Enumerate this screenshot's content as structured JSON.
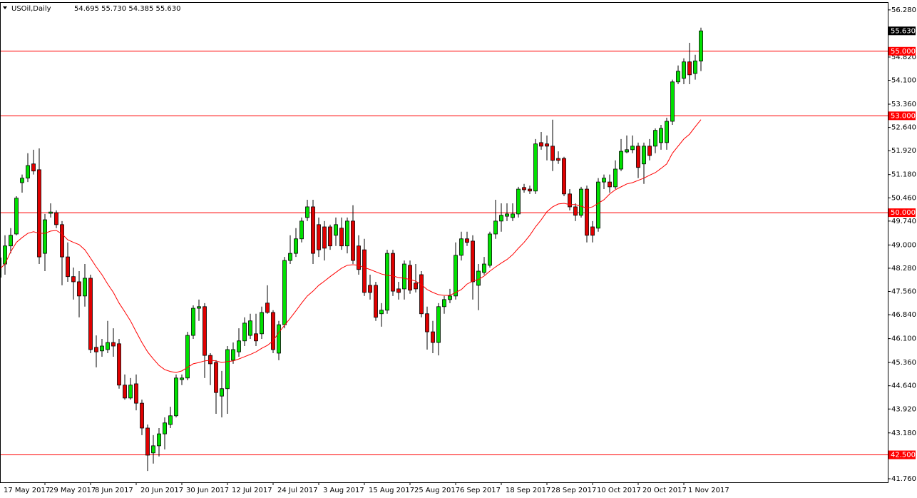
{
  "chart_data": {
    "type": "candlestick",
    "title": "USOil,Daily",
    "info": "54.695 55.730 54.385 55.630",
    "up_color": "#00e000",
    "down_color": "#e00000",
    "categories": [
      "17 May 2017",
      null,
      null,
      null,
      null,
      null,
      null,
      null,
      "29 May 2017",
      null,
      null,
      null,
      null,
      null,
      null,
      null,
      "8 Jun 2017",
      null,
      null,
      null,
      null,
      null,
      null,
      null,
      "20 Jun 2017",
      null,
      null,
      null,
      null,
      null,
      null,
      null,
      "30 Jun 2017",
      null,
      null,
      null,
      null,
      null,
      null,
      null,
      "12 Jul 2017",
      null,
      null,
      null,
      null,
      null,
      null,
      null,
      "24 Jul 2017",
      null,
      null,
      null,
      null,
      null,
      null,
      null,
      "3 Aug 2017",
      null,
      null,
      null,
      null,
      null,
      null,
      null,
      "15 Aug 2017",
      null,
      null,
      null,
      null,
      null,
      null,
      null,
      "25 Aug 2017",
      null,
      null,
      null,
      null,
      null,
      null,
      null,
      "6 Sep 2017",
      null,
      null,
      null,
      null,
      null,
      null,
      null,
      "18 Sep 2017",
      null,
      null,
      null,
      null,
      null,
      null,
      null,
      "28 Sep 2017",
      null,
      null,
      null,
      null,
      null,
      null,
      null,
      "10 Oct 2017",
      null,
      null,
      null,
      null,
      null,
      null,
      null,
      "20 Oct 2017",
      null,
      null,
      null,
      null,
      null,
      null,
      null,
      "1 Nov 2017",
      null,
      null,
      null
    ],
    "open": [
      48.0,
      48.41,
      48.97,
      49.34,
      50.93,
      51.07,
      51.51,
      51.33,
      48.74,
      49.98,
      50.0,
      49.63,
      48.63,
      48.02,
      47.86,
      47.42,
      47.97,
      45.83,
      45.72,
      45.76,
      45.98,
      45.94,
      44.66,
      44.26,
      44.7,
      44.1,
      43.33,
      42.56,
      42.78,
      43.15,
      43.44,
      43.71,
      44.83,
      44.88,
      46.2,
      47.04,
      47.09,
      45.58,
      45.36,
      44.32,
      44.55,
      45.43,
      45.69,
      46.03,
      46.2,
      46.25,
      46.25,
      47.2,
      46.91,
      45.65,
      46.53,
      48.52,
      48.74,
      49.19,
      49.85,
      50.18,
      49.63,
      49.56,
      49.56,
      49.3,
      49.52,
      48.97,
      49.74,
      48.97,
      48.85,
      47.75,
      47.75,
      46.87,
      46.98,
      48.74,
      47.64,
      47.64,
      48.37,
      47.82,
      48.08,
      46.87,
      46.31,
      45.98,
      47.09,
      47.31,
      47.42,
      48.68,
      49.19,
      49.12,
      47.75,
      48.15,
      48.37,
      49.34,
      49.74,
      49.89,
      49.85,
      49.96,
      50.78,
      50.73,
      50.67,
      52.17,
      52.13,
      52.06,
      51.68,
      51.68,
      50.58,
      50.18,
      49.92,
      50.73,
      49.56,
      49.52,
      50.95,
      50.95,
      50.8,
      51.35,
      51.88,
      51.95,
      52.06,
      51.51,
      52.06,
      52.06,
      52.17,
      52.17,
      52.83,
      54.05,
      54.16,
      54.67,
      54.31,
      54.695
    ],
    "high": [
      48.9,
      49.3,
      49.52,
      50.51,
      51.18,
      51.84,
      51.95,
      51.99,
      49.96,
      50.29,
      50.07,
      49.74,
      49.08,
      48.3,
      48.19,
      48.41,
      48.08,
      46.2,
      46.09,
      46.65,
      46.42,
      46.09,
      44.99,
      44.88,
      44.99,
      44.21,
      43.44,
      43.11,
      43.33,
      43.66,
      43.99,
      44.99,
      44.99,
      46.31,
      47.13,
      47.31,
      47.2,
      45.65,
      45.43,
      45.1,
      45.87,
      45.98,
      46.42,
      46.76,
      46.87,
      46.87,
      47.09,
      47.75,
      46.98,
      46.65,
      48.63,
      49.3,
      49.52,
      49.85,
      50.4,
      50.4,
      49.85,
      49.74,
      49.63,
      49.85,
      49.85,
      49.85,
      50.23,
      49.3,
      49.19,
      48.08,
      47.86,
      47.2,
      48.85,
      48.85,
      47.86,
      48.52,
      48.52,
      48.41,
      48.19,
      47.09,
      46.65,
      47.2,
      47.42,
      47.64,
      49.08,
      49.41,
      49.41,
      49.3,
      48.41,
      48.63,
      49.41,
      50.4,
      50.29,
      50.29,
      50.29,
      50.8,
      50.89,
      50.84,
      52.28,
      52.5,
      52.39,
      52.88,
      51.9,
      51.73,
      50.73,
      50.29,
      50.8,
      50.84,
      49.74,
      51.07,
      51.18,
      51.18,
      51.62,
      52.28,
      52.39,
      52.39,
      52.17,
      52.17,
      52.28,
      52.61,
      52.72,
      52.94,
      54.12,
      54.56,
      54.78,
      55.26,
      54.89,
      55.73
    ],
    "low": [
      47.8,
      48.08,
      48.74,
      49.3,
      50.62,
      50.95,
      51.18,
      48.41,
      48.19,
      49.85,
      49.52,
      47.75,
      47.86,
      47.31,
      46.76,
      47.09,
      45.65,
      45.21,
      45.54,
      45.65,
      45.54,
      44.55,
      44.21,
      44.21,
      43.88,
      43.11,
      42.0,
      42.23,
      42.45,
      42.67,
      43.33,
      43.66,
      44.66,
      44.81,
      46.09,
      46.65,
      44.88,
      44.66,
      43.77,
      43.66,
      43.77,
      45.32,
      45.54,
      45.87,
      46.09,
      45.87,
      46.09,
      46.87,
      45.65,
      45.43,
      46.42,
      48.41,
      48.63,
      49.08,
      49.74,
      48.41,
      48.63,
      48.52,
      48.85,
      48.97,
      48.85,
      48.74,
      48.41,
      48.08,
      47.42,
      47.31,
      46.65,
      46.47,
      46.87,
      47.42,
      47.31,
      47.31,
      47.49,
      47.53,
      46.76,
      45.76,
      45.65,
      45.58,
      46.87,
      47.2,
      47.31,
      48.52,
      48.97,
      47.31,
      46.98,
      48.08,
      48.3,
      49.19,
      49.41,
      49.74,
      49.74,
      49.85,
      50.62,
      50.58,
      50.58,
      51.95,
      51.62,
      51.29,
      51.51,
      50.51,
      50.07,
      49.74,
      49.85,
      49.08,
      49.08,
      49.41,
      50.73,
      50.62,
      50.73,
      51.29,
      51.84,
      51.84,
      51.07,
      50.89,
      51.62,
      51.84,
      51.95,
      51.95,
      52.72,
      53.98,
      53.98,
      53.98,
      54.12,
      54.385
    ],
    "close": [
      48.6,
      48.97,
      49.3,
      50.45,
      51.07,
      51.46,
      51.29,
      48.63,
      49.78,
      50.02,
      49.63,
      48.63,
      48.02,
      47.86,
      47.42,
      47.97,
      45.76,
      45.69,
      45.87,
      45.98,
      45.87,
      44.66,
      44.26,
      44.66,
      44.1,
      43.33,
      42.49,
      42.78,
      43.15,
      43.49,
      43.71,
      44.88,
      44.88,
      46.2,
      47.04,
      47.09,
      45.58,
      45.32,
      44.43,
      44.55,
      45.76,
      45.76,
      46.03,
      46.58,
      46.65,
      46.03,
      46.91,
      46.91,
      45.76,
      46.53,
      48.52,
      48.74,
      49.19,
      49.74,
      50.18,
      48.74,
      48.85,
      48.9,
      48.97,
      49.63,
      48.97,
      49.74,
      48.52,
      48.24,
      47.53,
      47.53,
      46.76,
      46.98,
      48.74,
      47.57,
      47.53,
      48.41,
      47.6,
      47.64,
      46.87,
      46.31,
      45.98,
      47.09,
      47.31,
      47.42,
      48.68,
      49.19,
      49.08,
      47.86,
      48.19,
      48.41,
      49.34,
      49.74,
      49.92,
      49.96,
      49.96,
      50.73,
      50.71,
      50.67,
      52.13,
      52.06,
      52.06,
      51.62,
      51.62,
      50.58,
      50.18,
      49.92,
      50.73,
      49.3,
      49.3,
      50.95,
      51.07,
      50.8,
      51.35,
      51.9,
      51.95,
      52.06,
      51.4,
      52.06,
      51.77,
      52.55,
      52.61,
      52.83,
      54.05,
      54.38,
      54.67,
      54.27,
      54.7,
      55.63
    ],
    "series": [
      {
        "color": "#ff0000",
        "values": [
          48.24,
          48.41,
          48.79,
          49.08,
          49.23,
          49.36,
          49.41,
          49.36,
          49.36,
          49.43,
          49.45,
          49.34,
          49.16,
          49.08,
          49.01,
          48.85,
          48.59,
          48.32,
          48.08,
          47.79,
          47.53,
          47.2,
          46.93,
          46.65,
          46.31,
          45.98,
          45.69,
          45.47,
          45.27,
          45.14,
          45.08,
          45.05,
          45.1,
          45.21,
          45.32,
          45.36,
          45.41,
          45.43,
          45.41,
          45.36,
          45.39,
          45.41,
          45.47,
          45.54,
          45.61,
          45.69,
          45.8,
          45.89,
          46.03,
          46.29,
          46.51,
          46.73,
          46.96,
          47.2,
          47.42,
          47.57,
          47.75,
          47.88,
          48.02,
          48.15,
          48.28,
          48.37,
          48.39,
          48.37,
          48.3,
          48.24,
          48.17,
          48.1,
          48.06,
          48.04,
          47.99,
          47.97,
          47.93,
          47.88,
          47.77,
          47.62,
          47.53,
          47.46,
          47.44,
          47.44,
          47.53,
          47.62,
          47.79,
          47.88,
          47.93,
          48.04,
          48.19,
          48.32,
          48.44,
          48.55,
          48.7,
          48.9,
          49.08,
          49.3,
          49.56,
          49.78,
          50.03,
          50.18,
          50.27,
          50.29,
          50.25,
          50.25,
          50.2,
          50.14,
          50.18,
          50.29,
          50.4,
          50.58,
          50.71,
          50.8,
          50.89,
          50.93,
          51.0,
          51.07,
          51.16,
          51.24,
          51.37,
          51.51,
          51.84,
          52.06,
          52.28,
          52.43,
          52.66,
          52.88
        ]
      }
    ],
    "levels": [
      {
        "value": 55,
        "label": "55.000"
      },
      {
        "value": 53,
        "label": "53.000"
      },
      {
        "value": 50,
        "label": "50.000"
      },
      {
        "value": 42.5,
        "label": "42.500"
      }
    ],
    "level_color": "#ff0000",
    "last": {
      "value": 55.63,
      "label": "55.630"
    },
    "ylim": [
      41.65,
      56.52
    ],
    "yticks": [
      {
        "value": 56.28,
        "label": "56.280"
      },
      {
        "value": 54.82,
        "label": "54.820"
      },
      {
        "value": 54.1,
        "label": "54.100"
      },
      {
        "value": 53.36,
        "label": "53.360"
      },
      {
        "value": 52.64,
        "label": "52.640"
      },
      {
        "value": 51.92,
        "label": "51.920"
      },
      {
        "value": 51.18,
        "label": "51.180"
      },
      {
        "value": 50.46,
        "label": "50.460"
      },
      {
        "value": 49.74,
        "label": "49.740"
      },
      {
        "value": 49,
        "label": "49.000"
      },
      {
        "value": 48.28,
        "label": "48.280"
      },
      {
        "value": 47.56,
        "label": "47.560"
      },
      {
        "value": 46.84,
        "label": "46.840"
      },
      {
        "value": 46.1,
        "label": "46.100"
      },
      {
        "value": 45.36,
        "label": "45.360"
      },
      {
        "value": 44.64,
        "label": "44.640"
      },
      {
        "value": 43.92,
        "label": "43.920"
      },
      {
        "value": 43.18,
        "label": "43.180"
      },
      {
        "value": 41.76,
        "label": "41.760"
      }
    ],
    "grid": false
  }
}
